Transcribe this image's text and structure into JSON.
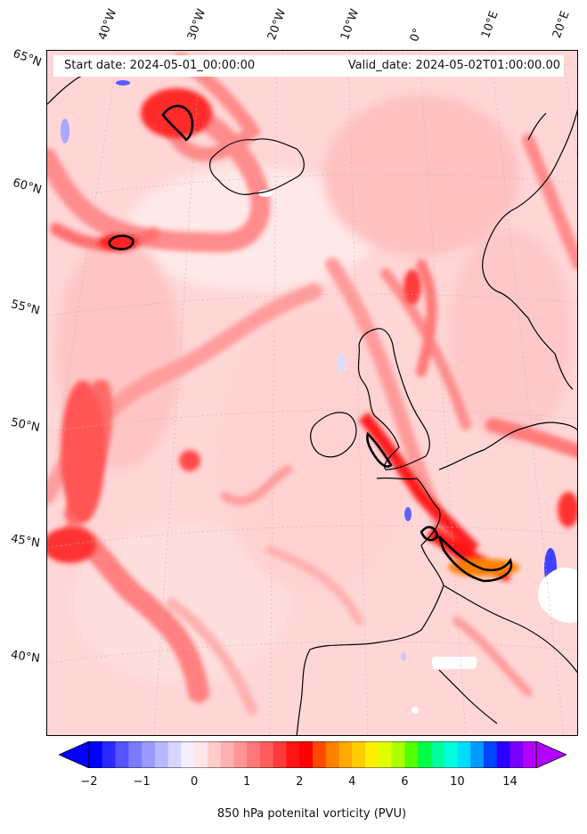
{
  "header": {
    "start_date": "Start date: 2024-05-01_00:00:00",
    "valid_date": "Valid_date: 2024-05-02T01:00:00.00"
  },
  "longitude_labels": [
    "40°W",
    "30°W",
    "20°W",
    "10°W",
    "0°",
    "10°E",
    "20°E"
  ],
  "latitude_labels": [
    "65°N",
    "60°N",
    "55°N",
    "50°N",
    "45°N",
    "40°N"
  ],
  "colorbar": {
    "title": "850 hPa potenital vorticity (PVU)",
    "tick_labels": [
      "−2",
      "−1",
      "0",
      "1",
      "2",
      "4",
      "6",
      "10",
      "14"
    ],
    "colors": [
      "#0000ff",
      "#2a2aff",
      "#5555ff",
      "#7b7bff",
      "#9999ff",
      "#b8b8ff",
      "#d6d6ff",
      "#f3f0ff",
      "#ffe6e6",
      "#ffcccc",
      "#ffb0b0",
      "#ff9494",
      "#ff7878",
      "#ff5c5c",
      "#ff3a3a",
      "#ff1414",
      "#ff0000",
      "#ff4a00",
      "#ff8000",
      "#ffaa00",
      "#ffcc00",
      "#ffee00",
      "#e0ff00",
      "#aaff00",
      "#55ff00",
      "#00ff44",
      "#00ff99",
      "#00ffdd",
      "#00ddff",
      "#0099ff",
      "#0044ff",
      "#2a00ff",
      "#7a00ff",
      "#b400ff"
    ]
  },
  "colors": {
    "land_outline": "#000000",
    "background_field": "#ffe6e6",
    "high_pv": "#ff2a2a"
  }
}
